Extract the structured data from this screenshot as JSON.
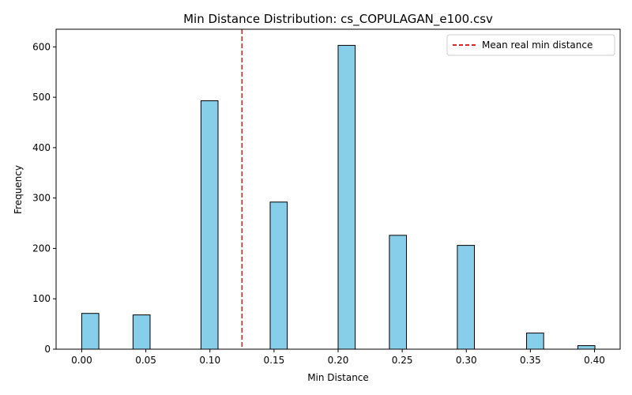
{
  "chart_data": {
    "type": "bar",
    "title": "Min Distance Distribution: cs_COPULAGAN_e100.csv",
    "xlabel": "Min Distance",
    "ylabel": "Frequency",
    "xlim": [
      -0.02,
      0.42
    ],
    "ylim": [
      0,
      635
    ],
    "x_ticks": [
      0.0,
      0.05,
      0.1,
      0.15,
      0.2,
      0.25,
      0.3,
      0.35,
      0.4
    ],
    "x_tick_labels": [
      "0.00",
      "0.05",
      "0.10",
      "0.15",
      "0.20",
      "0.25",
      "0.30",
      "0.35",
      "0.40"
    ],
    "y_ticks": [
      0,
      100,
      200,
      300,
      400,
      500,
      600
    ],
    "y_tick_labels": [
      "0",
      "100",
      "200",
      "300",
      "400",
      "500",
      "600"
    ],
    "bin_width": 0.01333,
    "bars": [
      {
        "x_start": 0.0,
        "value": 71
      },
      {
        "x_start": 0.04,
        "value": 68
      },
      {
        "x_start": 0.093,
        "value": 493
      },
      {
        "x_start": 0.147,
        "value": 292
      },
      {
        "x_start": 0.2,
        "value": 603
      },
      {
        "x_start": 0.24,
        "value": 226
      },
      {
        "x_start": 0.293,
        "value": 206
      },
      {
        "x_start": 0.347,
        "value": 32
      },
      {
        "x_start": 0.387,
        "value": 7
      }
    ],
    "bar_fill": "#87CEEB",
    "bar_edge": "#000000",
    "mean_line": {
      "x": 0.125,
      "label": "Mean real min distance",
      "color": "#d62728",
      "style": "dashed"
    },
    "legend_position": "top-right",
    "grid": false
  }
}
